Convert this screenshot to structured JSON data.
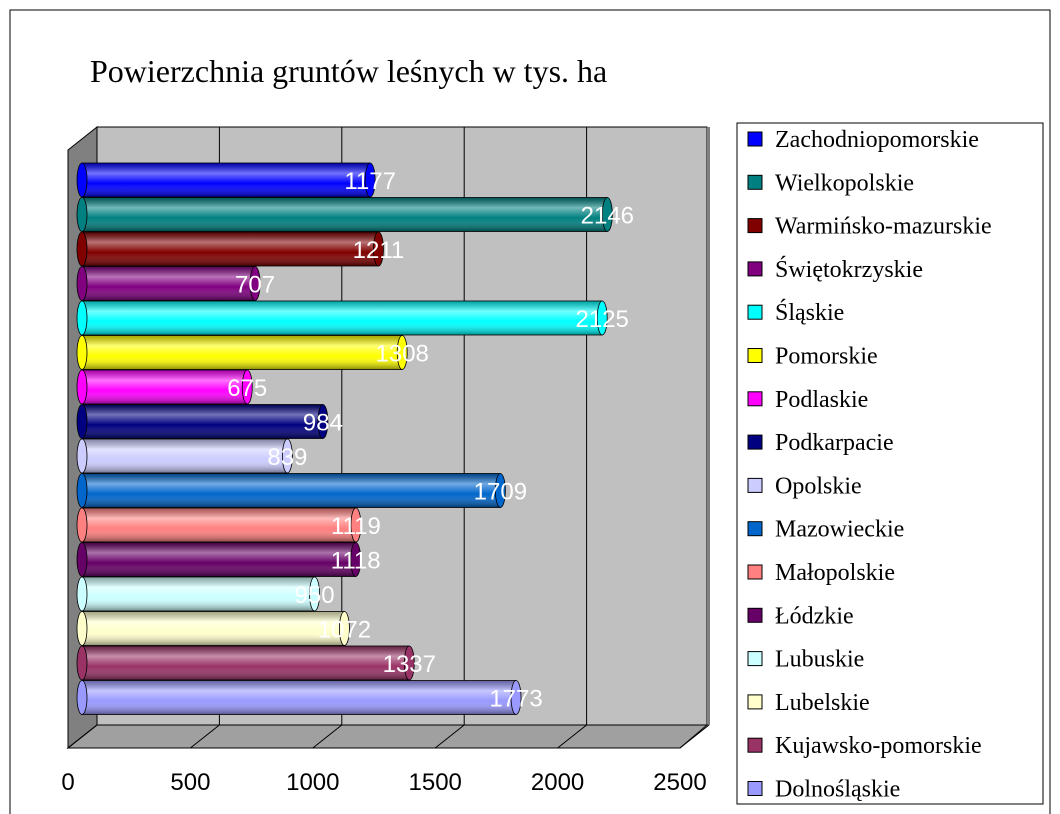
{
  "chart_data": {
    "type": "bar",
    "orientation": "horizontal",
    "title": "Powierzchnia gruntów leśnych w tys. ha",
    "series": [
      {
        "name": "Zachodniopomorskie",
        "color": "#0000ff",
        "values": [
          1177
        ]
      },
      {
        "name": "Wielkopolskie",
        "color": "#008080",
        "values": [
          2146
        ]
      },
      {
        "name": "Warmińsko-mazurskie",
        "color": "#800000",
        "values": [
          1211
        ]
      },
      {
        "name": "Świętokrzyskie",
        "color": "#800080",
        "values": [
          707
        ]
      },
      {
        "name": "Śląskie",
        "color": "#00ffff",
        "values": [
          2125
        ]
      },
      {
        "name": "Pomorskie",
        "color": "#ffff00",
        "values": [
          1308
        ]
      },
      {
        "name": "Podlaskie",
        "color": "#ff00ff",
        "values": [
          675
        ]
      },
      {
        "name": "Podkarpacie",
        "color": "#000080",
        "values": [
          984
        ]
      },
      {
        "name": "Opolskie",
        "color": "#ccccff",
        "values": [
          839
        ]
      },
      {
        "name": "Mazowieckie",
        "color": "#0066cc",
        "values": [
          1709
        ]
      },
      {
        "name": "Małopolskie",
        "color": "#ff8080",
        "values": [
          1119
        ]
      },
      {
        "name": "Łódzkie",
        "color": "#660066",
        "values": [
          1118
        ]
      },
      {
        "name": "Lubuskie",
        "color": "#ccffff",
        "values": [
          950
        ]
      },
      {
        "name": "Lubelskie",
        "color": "#ffffcc",
        "values": [
          1072
        ]
      },
      {
        "name": "Kujawsko-pomorskie",
        "color": "#993366",
        "values": [
          1337
        ]
      },
      {
        "name": "Dolnośląskie",
        "color": "#9999ff",
        "values": [
          1773
        ]
      }
    ],
    "xlim": [
      0,
      2500
    ],
    "xticks": [
      0,
      500,
      1000,
      1500,
      2000,
      2500
    ],
    "grid": true,
    "legend": "right"
  }
}
